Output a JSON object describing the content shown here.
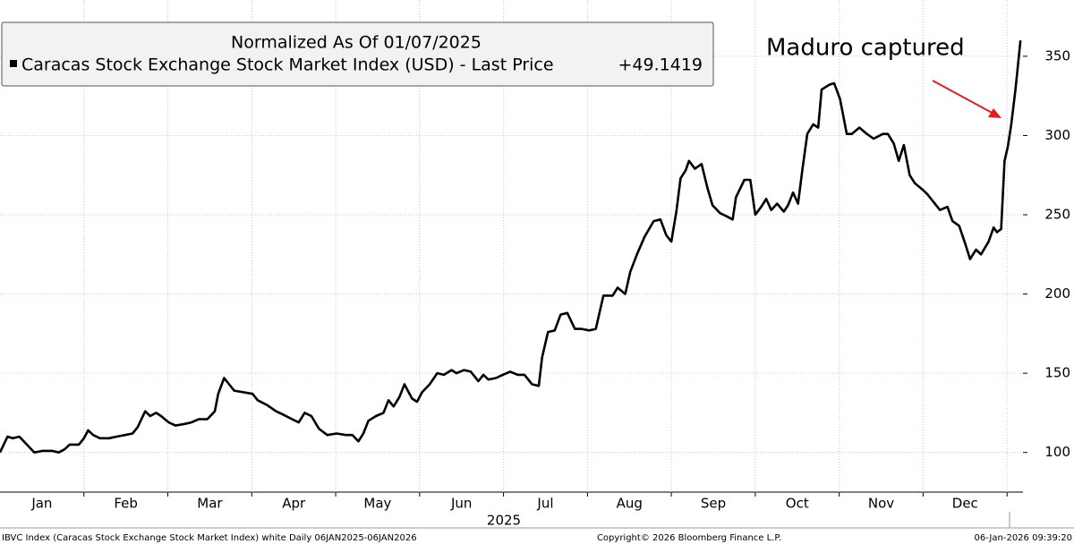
{
  "chart_data": {
    "type": "line",
    "legend_title": "Normalized As Of 01/07/2025",
    "annotation": "Maduro captured",
    "xlabel": "2025",
    "footer_left": "IBVC Index (Caracas Stock Exchange Stock Market Index) white Daily 06JAN2025-06JAN2026",
    "footer_center": "Copyright© 2026 Bloomberg Finance L.P.",
    "footer_right": "06-Jan-2026 09:39:20",
    "last_value": {
      "value": 49.1419,
      "label": "+49.1419"
    },
    "xlim": [
      0,
      12.19
    ],
    "xticks": [
      {
        "value": 0.5,
        "label": "Jan"
      },
      {
        "value": 1.5,
        "label": "Feb"
      },
      {
        "value": 2.5,
        "label": "Mar"
      },
      {
        "value": 3.5,
        "label": "Apr"
      },
      {
        "value": 4.5,
        "label": "May"
      },
      {
        "value": 5.5,
        "label": "Jun"
      },
      {
        "value": 6.5,
        "label": "Jul"
      },
      {
        "value": 7.5,
        "label": "Aug"
      },
      {
        "value": 8.5,
        "label": "Sep"
      },
      {
        "value": 9.5,
        "label": "Oct"
      },
      {
        "value": 10.5,
        "label": "Nov"
      },
      {
        "value": 11.5,
        "label": "Dec"
      }
    ],
    "xgrid": [
      1,
      2,
      3,
      4,
      5,
      6,
      7,
      8,
      9,
      10,
      11,
      12
    ],
    "ylim": [
      75,
      385.5
    ],
    "yticks": [
      100,
      150,
      200,
      250,
      300,
      350
    ],
    "grid": true,
    "x": [
      0,
      0.09,
      0.15,
      0.23,
      0.32,
      0.41,
      0.51,
      0.62,
      0.7,
      0.77,
      0.83,
      0.94,
      1.0,
      1.05,
      1.11,
      1.19,
      1.3,
      1.39,
      1.49,
      1.58,
      1.64,
      1.73,
      1.79,
      1.86,
      1.92,
      2.01,
      2.09,
      2.2,
      2.28,
      2.37,
      2.47,
      2.56,
      2.6,
      2.67,
      2.73,
      2.79,
      2.9,
      3.01,
      3.07,
      3.18,
      3.29,
      3.37,
      3.48,
      3.56,
      3.63,
      3.71,
      3.8,
      3.9,
      4.01,
      4.12,
      4.2,
      4.27,
      4.33,
      4.39,
      4.48,
      4.57,
      4.63,
      4.69,
      4.76,
      4.82,
      4.91,
      4.97,
      5.03,
      5.12,
      5.21,
      5.29,
      5.38,
      5.44,
      5.53,
      5.61,
      5.7,
      5.76,
      5.82,
      5.91,
      5.99,
      6.08,
      6.17,
      6.25,
      6.34,
      6.42,
      6.46,
      6.53,
      6.61,
      6.68,
      6.76,
      6.85,
      6.93,
      7.02,
      7.1,
      7.19,
      7.3,
      7.36,
      7.45,
      7.51,
      7.59,
      7.68,
      7.79,
      7.87,
      7.94,
      8.0,
      8.06,
      8.11,
      8.17,
      8.21,
      8.28,
      8.36,
      8.43,
      8.49,
      8.58,
      8.66,
      8.73,
      8.77,
      8.87,
      8.94,
      9.0,
      9.07,
      9.13,
      9.19,
      9.26,
      9.34,
      9.39,
      9.45,
      9.51,
      9.56,
      9.62,
      9.69,
      9.75,
      9.79,
      9.88,
      9.94,
      10.01,
      10.09,
      10.15,
      10.24,
      10.33,
      10.41,
      10.52,
      10.58,
      10.65,
      10.71,
      10.77,
      10.84,
      10.9,
      10.99,
      11.05,
      11.14,
      11.2,
      11.29,
      11.35,
      11.43,
      11.5,
      11.56,
      11.63,
      11.69,
      11.78,
      11.84,
      11.88,
      11.93,
      11.97,
      12.01,
      12.05,
      12.1,
      12.16
    ],
    "series": [
      {
        "name": "Caracas Stock Exchange Stock Market Index (USD) - Last Price",
        "color": "#000000",
        "values": [
          100,
          110,
          109,
          110,
          105,
          100,
          101,
          101,
          100,
          102,
          105,
          105,
          109,
          114,
          111,
          109,
          109,
          110,
          111,
          112,
          116,
          126,
          123,
          125,
          123,
          119,
          117,
          118,
          119,
          121,
          121,
          126,
          137,
          147,
          143,
          139,
          138,
          137,
          133,
          130,
          126,
          124,
          121,
          119,
          125,
          123,
          115,
          111,
          112,
          111,
          111,
          107,
          112,
          120,
          123,
          125,
          133,
          129,
          135,
          143,
          134,
          132,
          138,
          143,
          150,
          149,
          152,
          150,
          152,
          151,
          145,
          149,
          146,
          147,
          149,
          151,
          149,
          149,
          143,
          142,
          160,
          176,
          177,
          187,
          188,
          178,
          178,
          177,
          178,
          199,
          199,
          204,
          200,
          214,
          225,
          236,
          246,
          247,
          237,
          233,
          252,
          273,
          278,
          284,
          279,
          282,
          267,
          256,
          251,
          249,
          247,
          261,
          272,
          272,
          250,
          255,
          260,
          253,
          257,
          252,
          256,
          264,
          257,
          278,
          301,
          307,
          305,
          329,
          332,
          333,
          323,
          301,
          301,
          305,
          301,
          298,
          301,
          301,
          295,
          284,
          294,
          275,
          270,
          266,
          263,
          257,
          253,
          255,
          246,
          243,
          232,
          222,
          228,
          225,
          233,
          242,
          239,
          241,
          284,
          293,
          307,
          329,
          360
        ]
      }
    ]
  }
}
